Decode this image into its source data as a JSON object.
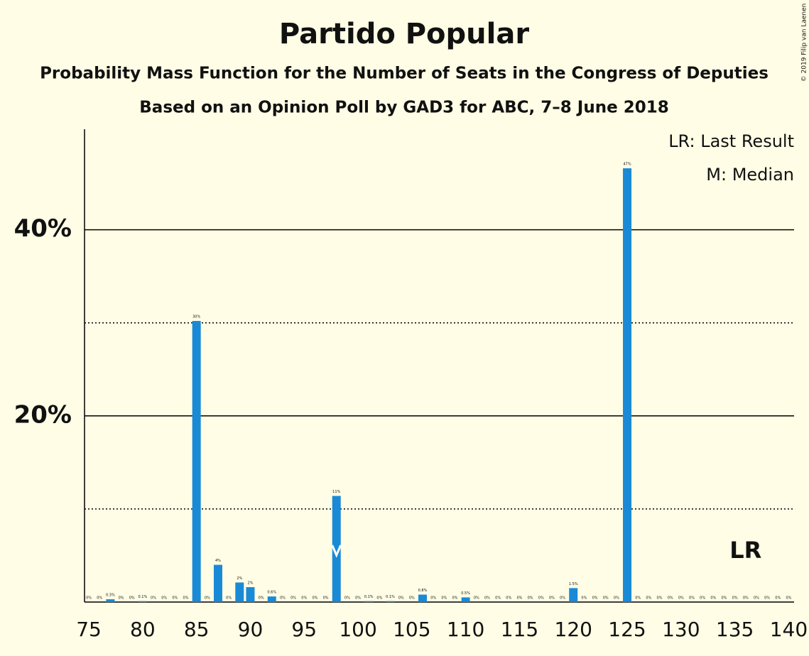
{
  "chart_data": {
    "type": "bar",
    "title": "Partido Popular",
    "subtitle": "Probability Mass Function for the Number of Seats in the Congress of Deputies",
    "subtitle2": "Based on an Opinion Poll by GAD3 for ABC, 7–8 June 2018",
    "copyright": "© 2019 Filip van Laenen",
    "legend": [
      "LR: Last Result",
      "M: Median"
    ],
    "color": "#1a8ad6",
    "background": "#fffde5",
    "x": [
      75,
      76,
      77,
      78,
      79,
      80,
      81,
      82,
      83,
      84,
      85,
      86,
      87,
      88,
      89,
      90,
      91,
      92,
      93,
      94,
      95,
      96,
      97,
      98,
      99,
      100,
      101,
      102,
      103,
      104,
      105,
      106,
      107,
      108,
      109,
      110,
      111,
      112,
      113,
      114,
      115,
      116,
      117,
      118,
      119,
      120,
      121,
      122,
      123,
      124,
      125,
      126,
      127,
      128,
      129,
      130,
      131,
      132,
      133,
      134,
      135,
      136,
      137,
      138,
      139,
      140
    ],
    "values": [
      0,
      0,
      0.3,
      0,
      0,
      0.1,
      0,
      0,
      0,
      0,
      30.2,
      0,
      4,
      0,
      2.1,
      1.6,
      0,
      0.6,
      0,
      0,
      0,
      0,
      0,
      11.4,
      0,
      0,
      0.1,
      0,
      0.1,
      0,
      0,
      0.8,
      0,
      0,
      0,
      0.5,
      0,
      0,
      0,
      0,
      0,
      0,
      0,
      0,
      0,
      1.5,
      0,
      0,
      0,
      0,
      46.6,
      0,
      0,
      0,
      0,
      0,
      0,
      0,
      0,
      0,
      0,
      0,
      0,
      0,
      0,
      0
    ],
    "value_labels": [
      "0%",
      "0%",
      "0.3%",
      "0%",
      "0%",
      "0.1%",
      "0%",
      "0%",
      "0%",
      "0%",
      "30%",
      "0%",
      "4%",
      "0%",
      "2%",
      "2%",
      "0%",
      "0.6%",
      "0%",
      "0%",
      "0%",
      "0%",
      "0%",
      "11%",
      "0%",
      "0%",
      "0.1%",
      "0%",
      "0.1%",
      "0%",
      "0%",
      "0.8%",
      "0%",
      "0%",
      "0%",
      "0.5%",
      "0%",
      "0%",
      "0%",
      "0%",
      "0%",
      "0%",
      "0%",
      "0%",
      "0%",
      "1.5%",
      "0%",
      "0%",
      "0%",
      "0%",
      "47%",
      "0%",
      "0%",
      "0%",
      "0%",
      "0%",
      "0%",
      "0%",
      "0%",
      "0%",
      "0%",
      "0%",
      "0%",
      "0%",
      "0%",
      "0%"
    ],
    "xlim": [
      74.6,
      140.5
    ],
    "xticks": [
      75,
      80,
      85,
      90,
      95,
      100,
      105,
      110,
      115,
      120,
      125,
      130,
      135,
      140
    ],
    "ylim": [
      0,
      50.8
    ],
    "yticks": [
      {
        "value": 20,
        "label": "20%"
      },
      {
        "value": 40,
        "label": "40%"
      }
    ],
    "yminorticks": [
      10,
      30
    ],
    "median": 98,
    "median_label": "M",
    "last_result": 136,
    "last_result_label": "LR"
  }
}
